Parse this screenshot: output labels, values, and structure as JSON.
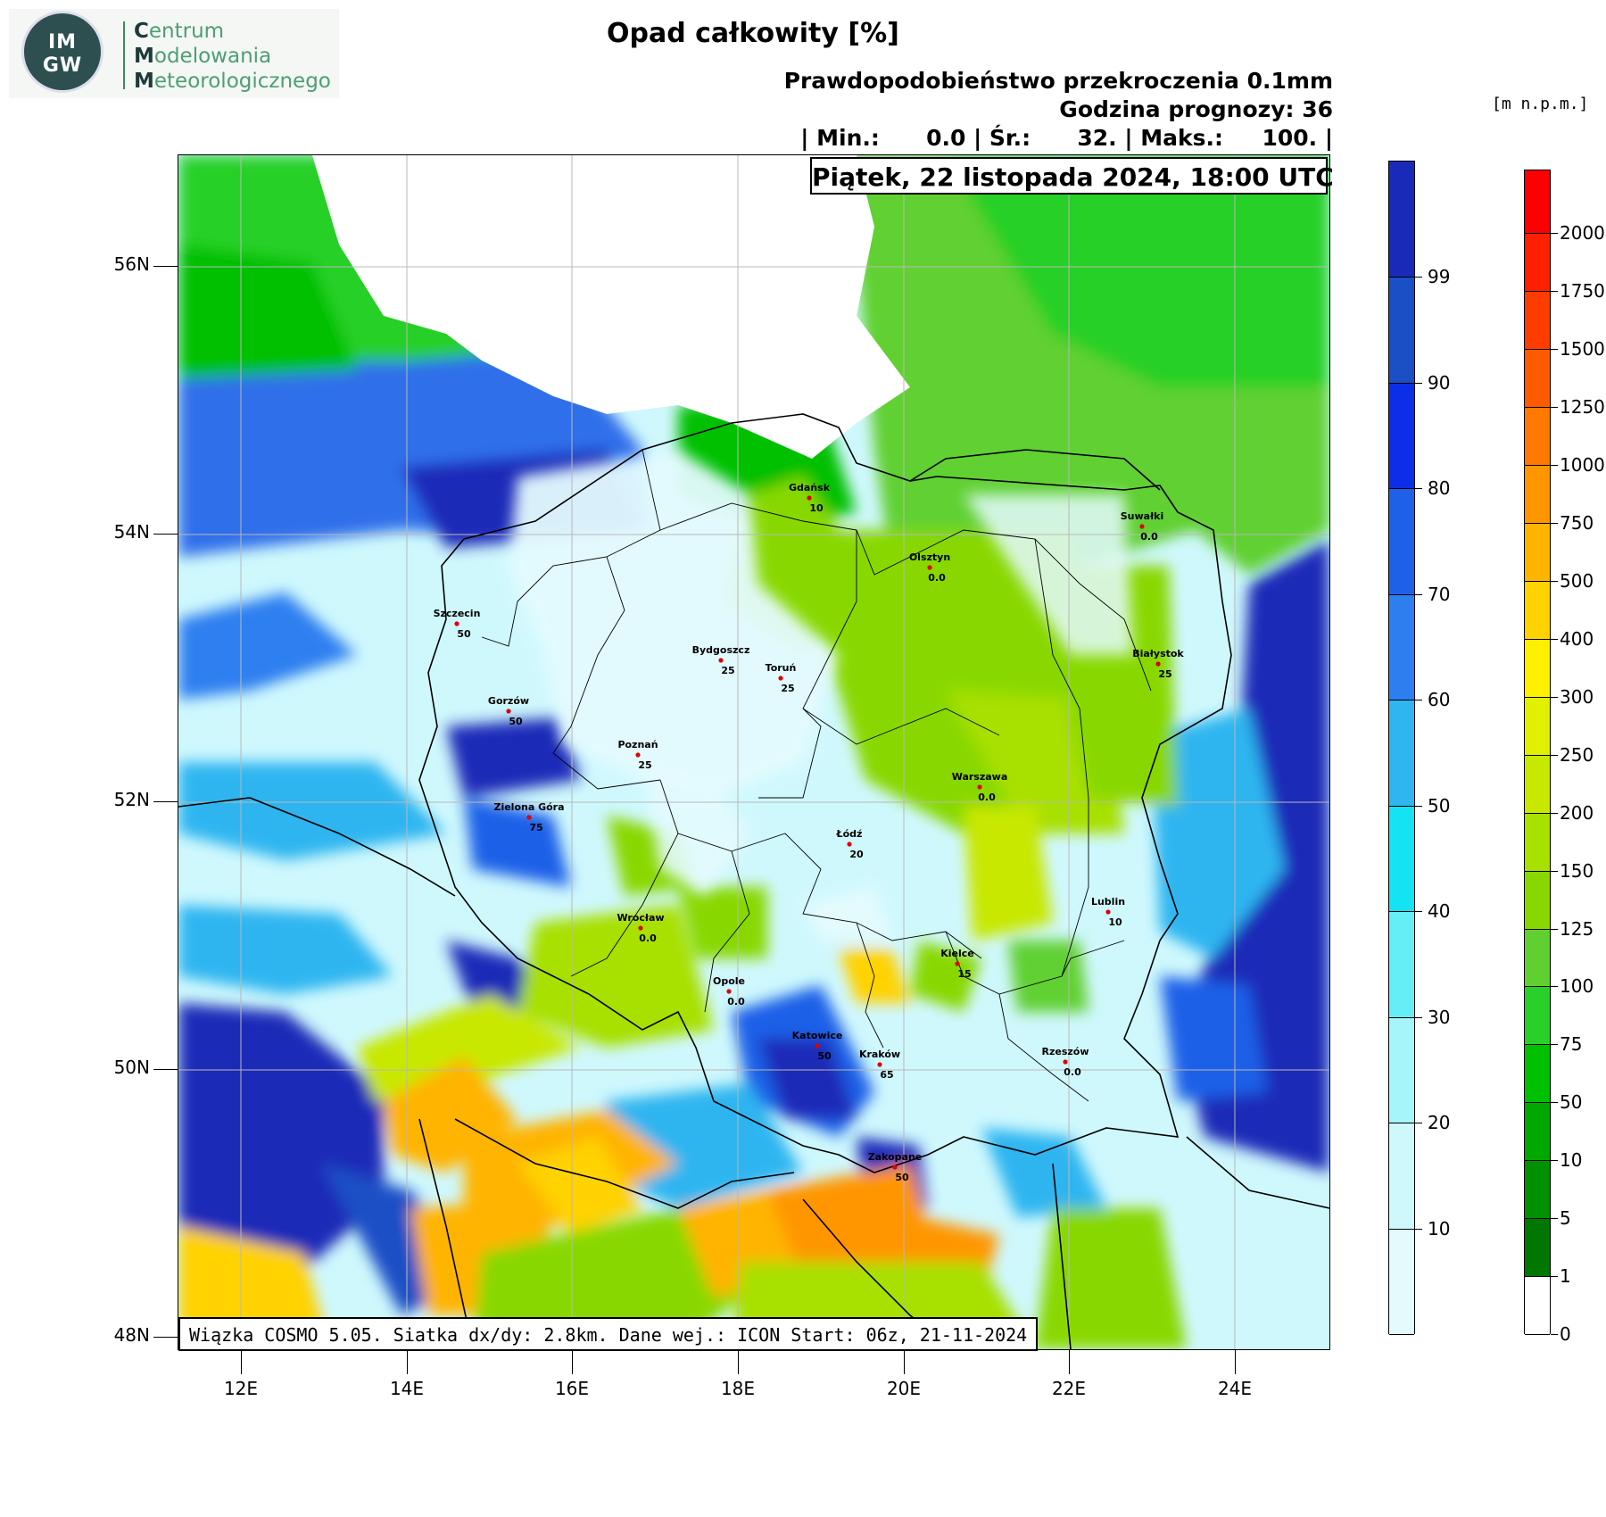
{
  "logo": {
    "seal_top": "IM",
    "seal_bottom": "GW",
    "line1_initial": "C",
    "line1_rest": "entrum",
    "line2_initial": "M",
    "line2_rest": "odelowania",
    "line3_initial": "M",
    "line3_rest": "eteorologicznego"
  },
  "header": {
    "title": "Opad całkowity [%]",
    "probability": "Prawdopodobieństwo przekroczenia 0.1mm",
    "forecast_hour": "Godzina prognozy: 36",
    "stats": "| Min.:      0.0 | Śr.:      32. | Maks.:     100. |",
    "date": "Piątek, 22 listopada 2024, 18:00 UTC",
    "unit": "[m n.p.m.]"
  },
  "footer": "Wiązka COSMO 5.05. Siatka dx/dy: 2.8km. Dane wej.: ICON Start: 06z, 21-11-2024",
  "axes": {
    "latitudes": [
      "56N",
      "54N",
      "52N",
      "50N",
      "48N"
    ],
    "longitudes": [
      "12E",
      "14E",
      "16E",
      "18E",
      "20E",
      "22E",
      "24E"
    ]
  },
  "precip_scale": {
    "labels": [
      "99",
      "90",
      "80",
      "70",
      "60",
      "50",
      "40",
      "30",
      "20",
      "10"
    ],
    "colors": [
      "#1a2ab8",
      "#1a4fc6",
      "#0d2ee8",
      "#1f60e8",
      "#2d7ff0",
      "#2fb5f0",
      "#14e3f3",
      "#66eef7",
      "#a6f5fa",
      "#cff8fd",
      "#e4fbfe"
    ]
  },
  "terrain_scale": {
    "labels": [
      "2000",
      "1750",
      "1500",
      "1250",
      "1000",
      "750",
      "500",
      "400",
      "300",
      "250",
      "200",
      "150",
      "125",
      "100",
      "75",
      "50",
      "10",
      "5",
      "1",
      "0"
    ],
    "colors": [
      "#ff0000",
      "#ff2000",
      "#ff3c00",
      "#ff5a00",
      "#ff7800",
      "#ff9600",
      "#ffb400",
      "#ffd200",
      "#fff000",
      "#e0f000",
      "#c8e800",
      "#a8e000",
      "#88d800",
      "#60d030",
      "#28d028",
      "#00c000",
      "#00a800",
      "#009000",
      "#007800",
      "#ffffff"
    ]
  },
  "cities": [
    {
      "name": "Gdańsk",
      "value": "10"
    },
    {
      "name": "Suwałki",
      "value": "0.0"
    },
    {
      "name": "Olsztyn",
      "value": "0.0"
    },
    {
      "name": "Szczecin",
      "value": "50"
    },
    {
      "name": "Bydgoszcz",
      "value": "25"
    },
    {
      "name": "Toruń",
      "value": "25"
    },
    {
      "name": "Białystok",
      "value": "25"
    },
    {
      "name": "Gorzów",
      "value": "50"
    },
    {
      "name": "Poznań",
      "value": "25"
    },
    {
      "name": "Warszawa",
      "value": "0.0"
    },
    {
      "name": "Zielona Góra",
      "value": "75"
    },
    {
      "name": "Łódź",
      "value": "20"
    },
    {
      "name": "Lublin",
      "value": "10"
    },
    {
      "name": "Wrocław",
      "value": "0.0"
    },
    {
      "name": "Kielce",
      "value": "15"
    },
    {
      "name": "Opole",
      "value": "0.0"
    },
    {
      "name": "Katowice",
      "value": "50"
    },
    {
      "name": "Kraków",
      "value": "65"
    },
    {
      "name": "Rzeszów",
      "value": "0.0"
    },
    {
      "name": "Zakopane",
      "value": "50"
    }
  ]
}
